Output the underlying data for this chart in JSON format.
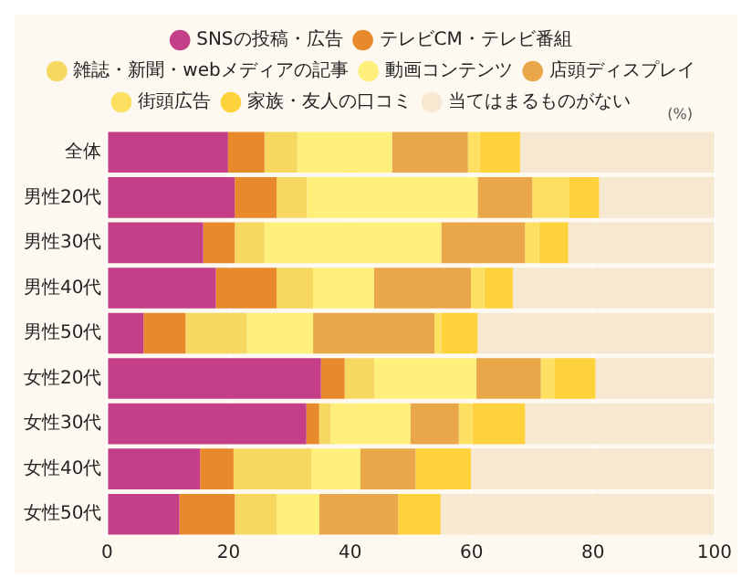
{
  "chart_data": {
    "type": "bar",
    "orientation": "horizontal",
    "stacked": true,
    "categories": [
      "全体",
      "男性20代",
      "男性30代",
      "男性40代",
      "男性50代",
      "女性20代",
      "女性30代",
      "女性40代",
      "女性50代"
    ],
    "series": [
      {
        "name": "SNSの投稿・広告",
        "color": "#c43f87",
        "values": [
          19.9,
          21.0,
          15.8,
          17.9,
          6.0,
          35.2,
          32.8,
          15.3,
          11.9
        ]
      },
      {
        "name": "テレビCM・テレビ番組",
        "color": "#e8892c",
        "values": [
          6.0,
          6.9,
          5.2,
          10.0,
          6.9,
          3.9,
          2.1,
          5.5,
          9.1
        ]
      },
      {
        "name": "雑誌・新聞・webメディアの記事",
        "color": "#f6d860",
        "values": [
          5.4,
          5.0,
          4.9,
          6.0,
          10.1,
          4.9,
          1.9,
          12.8,
          6.9
        ]
      },
      {
        "name": "動画コンテンツ",
        "color": "#fef07a",
        "values": [
          15.6,
          28.1,
          29.1,
          10.0,
          10.9,
          16.8,
          13.1,
          8.1,
          7.0
        ]
      },
      {
        "name": "店頭ディスプレイ",
        "color": "#eaa74a",
        "values": [
          12.5,
          9.0,
          13.8,
          16.0,
          20.0,
          10.6,
          8.0,
          9.1,
          13.0
        ]
      },
      {
        "name": "街頭広告",
        "color": "#fde062",
        "values": [
          1.9,
          6.1,
          2.3,
          2.2,
          1.1,
          2.3,
          2.2,
          0,
          0
        ]
      },
      {
        "name": "家族・友人の口コミ",
        "color": "#fed23b",
        "values": [
          6.7,
          4.9,
          4.8,
          4.7,
          6.0,
          6.7,
          8.7,
          9.1,
          7.0
        ]
      },
      {
        "name": "当てはまるものがない",
        "color": "#f7e8d1",
        "values": [
          32.0,
          19.0,
          24.1,
          33.2,
          39.0,
          19.6,
          31.2,
          40.1,
          45.1
        ]
      }
    ],
    "xlim": [
      0,
      100
    ],
    "xticks": [
      0,
      20,
      40,
      60,
      80,
      100
    ],
    "grid": "x",
    "legend": "top",
    "annotations": [
      "(%)"
    ]
  }
}
